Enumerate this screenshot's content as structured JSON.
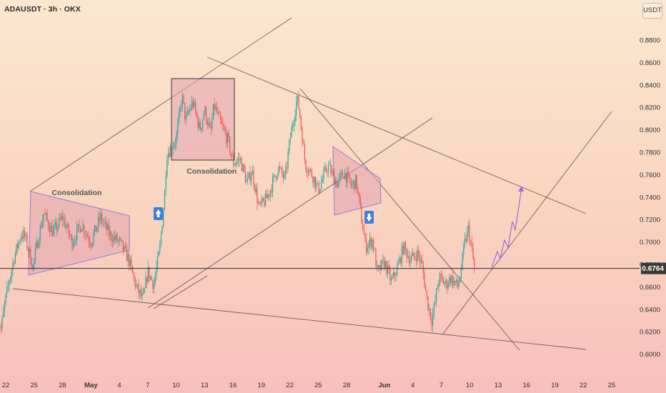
{
  "header": {
    "symbol_title": "ADAUSDT · 3h · OKX",
    "currency": "USDT"
  },
  "chart_data": {
    "type": "candlestick",
    "symbol": "ADAUSDT",
    "interval": "3h",
    "exchange": "OKX",
    "ylim": [
      0.59,
      0.9
    ],
    "y_ticks": [
      "0.8800",
      "0.8600",
      "0.8400",
      "0.8200",
      "0.8000",
      "0.7800",
      "0.7600",
      "0.7400",
      "0.7200",
      "0.7000",
      "0.6800",
      "0.6600",
      "0.6400",
      "0.6200",
      "0.6000"
    ],
    "x_ticks": [
      {
        "label": "22",
        "date": "2025-04-22"
      },
      {
        "label": "25",
        "date": "2025-04-25"
      },
      {
        "label": "28",
        "date": "2025-04-28"
      },
      {
        "label": "May",
        "date": "2025-05-01",
        "bold": true
      },
      {
        "label": "4",
        "date": "2025-05-04"
      },
      {
        "label": "7",
        "date": "2025-05-07"
      },
      {
        "label": "10",
        "date": "2025-05-10"
      },
      {
        "label": "13",
        "date": "2025-05-13"
      },
      {
        "label": "16",
        "date": "2025-05-16"
      },
      {
        "label": "19",
        "date": "2025-05-19"
      },
      {
        "label": "22",
        "date": "2025-05-22"
      },
      {
        "label": "25",
        "date": "2025-05-25"
      },
      {
        "label": "28",
        "date": "2025-05-28"
      },
      {
        "label": "Jun",
        "date": "2025-06-01",
        "bold": true
      },
      {
        "label": "4",
        "date": "2025-06-04"
      },
      {
        "label": "7",
        "date": "2025-06-07"
      },
      {
        "label": "10",
        "date": "2025-06-10"
      },
      {
        "label": "13",
        "date": "2025-06-13"
      },
      {
        "label": "16",
        "date": "2025-06-16"
      },
      {
        "label": "19",
        "date": "2025-06-19"
      },
      {
        "label": "22",
        "date": "2025-06-22"
      },
      {
        "label": "25",
        "date": "2025-06-25"
      }
    ],
    "current_price": "0.6764",
    "current_price_value": 0.6764,
    "path_anchors": [
      {
        "date": "2025-04-21",
        "price": 0.636
      },
      {
        "date": "2025-04-21T12",
        "price": 0.622
      },
      {
        "date": "2025-04-22",
        "price": 0.65
      },
      {
        "date": "2025-04-22T21",
        "price": 0.686
      },
      {
        "date": "2025-04-23T15",
        "price": 0.707
      },
      {
        "date": "2025-04-24",
        "price": 0.705
      },
      {
        "date": "2025-04-24T21",
        "price": 0.678
      },
      {
        "date": "2025-04-25T12",
        "price": 0.706
      },
      {
        "date": "2025-04-26",
        "price": 0.725
      },
      {
        "date": "2025-04-27",
        "price": 0.708
      },
      {
        "date": "2025-04-28",
        "price": 0.722
      },
      {
        "date": "2025-04-29",
        "price": 0.7
      },
      {
        "date": "2025-04-30",
        "price": 0.716
      },
      {
        "date": "2025-05-01",
        "price": 0.7
      },
      {
        "date": "2025-05-02",
        "price": 0.722
      },
      {
        "date": "2025-05-03",
        "price": 0.706
      },
      {
        "date": "2025-05-04",
        "price": 0.7
      },
      {
        "date": "2025-05-05",
        "price": 0.684
      },
      {
        "date": "2025-05-05T18",
        "price": 0.66
      },
      {
        "date": "2025-05-06T12",
        "price": 0.648
      },
      {
        "date": "2025-05-07",
        "price": 0.674
      },
      {
        "date": "2025-05-07T15",
        "price": 0.662
      },
      {
        "date": "2025-05-08T06",
        "price": 0.692
      },
      {
        "date": "2025-05-08T18",
        "price": 0.738
      },
      {
        "date": "2025-05-09",
        "price": 0.778
      },
      {
        "date": "2025-05-10",
        "price": 0.792
      },
      {
        "date": "2025-05-10T15",
        "price": 0.83
      },
      {
        "date": "2025-05-11",
        "price": 0.808
      },
      {
        "date": "2025-05-11T18",
        "price": 0.825
      },
      {
        "date": "2025-05-12T12",
        "price": 0.8
      },
      {
        "date": "2025-05-13",
        "price": 0.818
      },
      {
        "date": "2025-05-13T15",
        "price": 0.796
      },
      {
        "date": "2025-05-14",
        "price": 0.822
      },
      {
        "date": "2025-05-14T18",
        "price": 0.804
      },
      {
        "date": "2025-05-15T12",
        "price": 0.79
      },
      {
        "date": "2025-05-16",
        "price": 0.77
      },
      {
        "date": "2025-05-16T18",
        "price": 0.774
      },
      {
        "date": "2025-05-17T12",
        "price": 0.752
      },
      {
        "date": "2025-05-18",
        "price": 0.764
      },
      {
        "date": "2025-05-18T18",
        "price": 0.73
      },
      {
        "date": "2025-05-19T12",
        "price": 0.738
      },
      {
        "date": "2025-05-20",
        "price": 0.748
      },
      {
        "date": "2025-05-20T18",
        "price": 0.766
      },
      {
        "date": "2025-05-21T12",
        "price": 0.756
      },
      {
        "date": "2025-05-22",
        "price": 0.79
      },
      {
        "date": "2025-05-22T18",
        "price": 0.828
      },
      {
        "date": "2025-05-23",
        "price": 0.818
      },
      {
        "date": "2025-05-23T15",
        "price": 0.77
      },
      {
        "date": "2025-05-24T12",
        "price": 0.758
      },
      {
        "date": "2025-05-25",
        "price": 0.746
      },
      {
        "date": "2025-05-26",
        "price": 0.768
      },
      {
        "date": "2025-05-27",
        "price": 0.752
      },
      {
        "date": "2025-05-27T18",
        "price": 0.762
      },
      {
        "date": "2025-05-28T12",
        "price": 0.75
      },
      {
        "date": "2025-05-29",
        "price": 0.754
      },
      {
        "date": "2025-05-29T15",
        "price": 0.718
      },
      {
        "date": "2025-05-30",
        "price": 0.696
      },
      {
        "date": "2025-05-30T18",
        "price": 0.702
      },
      {
        "date": "2025-05-31T06",
        "price": 0.672
      },
      {
        "date": "2025-06-01",
        "price": 0.682
      },
      {
        "date": "2025-06-01T18",
        "price": 0.664
      },
      {
        "date": "2025-06-02T12",
        "price": 0.68
      },
      {
        "date": "2025-06-03",
        "price": 0.696
      },
      {
        "date": "2025-06-03T18",
        "price": 0.684
      },
      {
        "date": "2025-06-04T12",
        "price": 0.69
      },
      {
        "date": "2025-06-05",
        "price": 0.678
      },
      {
        "date": "2025-06-05T12",
        "price": 0.648
      },
      {
        "date": "2025-06-06",
        "price": 0.63
      },
      {
        "date": "2025-06-06T09",
        "price": 0.648
      },
      {
        "date": "2025-06-06T18",
        "price": 0.668
      },
      {
        "date": "2025-06-07T12",
        "price": 0.662
      },
      {
        "date": "2025-06-08",
        "price": 0.668
      },
      {
        "date": "2025-06-08T18",
        "price": 0.66
      },
      {
        "date": "2025-06-09",
        "price": 0.67
      },
      {
        "date": "2025-06-09T12",
        "price": 0.7
      },
      {
        "date": "2025-06-09T21",
        "price": 0.712
      },
      {
        "date": "2025-06-10T12",
        "price": 0.676
      }
    ],
    "annotations": [
      {
        "text": "Consolidation",
        "date": "2025-04-29T12",
        "price": 0.7418
      },
      {
        "text": "Consolidation",
        "date": "2025-05-13T18",
        "price": 0.761
      }
    ],
    "colors": {
      "up": "#26a69a",
      "down": "#ef5350",
      "price_line": "#2b2b2b",
      "price_tag_bg": "#3a3a3a",
      "zone_fill": "#e3a2b0",
      "zone_stroke": "#8e7bd6",
      "box_stroke": "#333333",
      "projection": "#9a6fe0",
      "signal_arrow": "#3d7ee0",
      "trendline": "#5a4a48"
    }
  }
}
